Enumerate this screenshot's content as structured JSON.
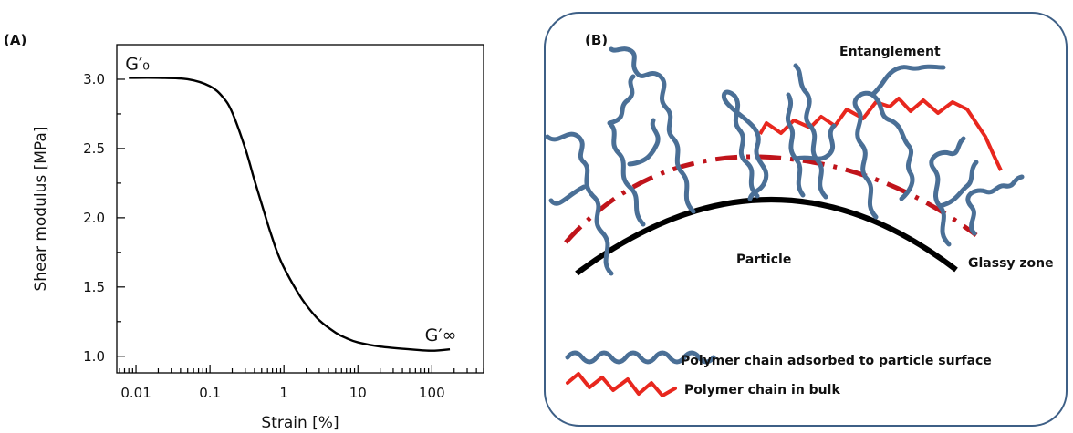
{
  "panel_a": {
    "label": "(A)"
  },
  "panel_b": {
    "label": "(B)",
    "texts": {
      "entanglement": "Entanglement",
      "particle": "Particle",
      "glassy_zone": "Glassy zone"
    },
    "legend": [
      {
        "label": "Polymer chain adsorbed to particle surface",
        "color": "#4a6f96"
      },
      {
        "label": "Polymer chain in bulk",
        "color": "#e8271e"
      }
    ],
    "colors": {
      "adsorbed_chain": "#4a6f96",
      "bulk_chain": "#e8271e",
      "glassy_boundary": "#c0141b",
      "particle_surface": "#000000",
      "frame": "#3d5f86"
    }
  },
  "chart_data": {
    "type": "line",
    "xlabel": "Strain [%]",
    "ylabel": "Shear modulus [MPa]",
    "xscale": "log",
    "xlim": [
      0.0055,
      500
    ],
    "ylim": [
      0.88,
      3.25
    ],
    "xticks": [
      0.01,
      0.1,
      1,
      10,
      100
    ],
    "xtick_labels": [
      "0.01",
      "0.1",
      "1",
      "10",
      "100"
    ],
    "yticks": [
      1.0,
      1.5,
      2.0,
      2.5,
      3.0
    ],
    "ytick_labels": [
      "1.0",
      "1.5",
      "2.0",
      "2.5",
      "3.0"
    ],
    "grid": false,
    "annotations": [
      {
        "text": "G′₀",
        "x": 0.008,
        "y": 3.01
      },
      {
        "text": "G′∞",
        "x": 150,
        "y": 1.05
      }
    ],
    "series": [
      {
        "x": [
          0.008,
          0.02,
          0.05,
          0.1,
          0.15,
          0.2,
          0.3,
          0.4,
          0.5,
          0.6,
          0.7,
          0.8,
          1,
          1.5,
          2,
          3,
          5,
          7,
          10,
          20,
          50,
          100,
          175
        ],
        "y": [
          3.01,
          3.01,
          3.0,
          2.95,
          2.87,
          2.76,
          2.5,
          2.27,
          2.1,
          1.96,
          1.85,
          1.76,
          1.64,
          1.47,
          1.37,
          1.26,
          1.17,
          1.13,
          1.1,
          1.07,
          1.05,
          1.04,
          1.05
        ]
      }
    ]
  }
}
